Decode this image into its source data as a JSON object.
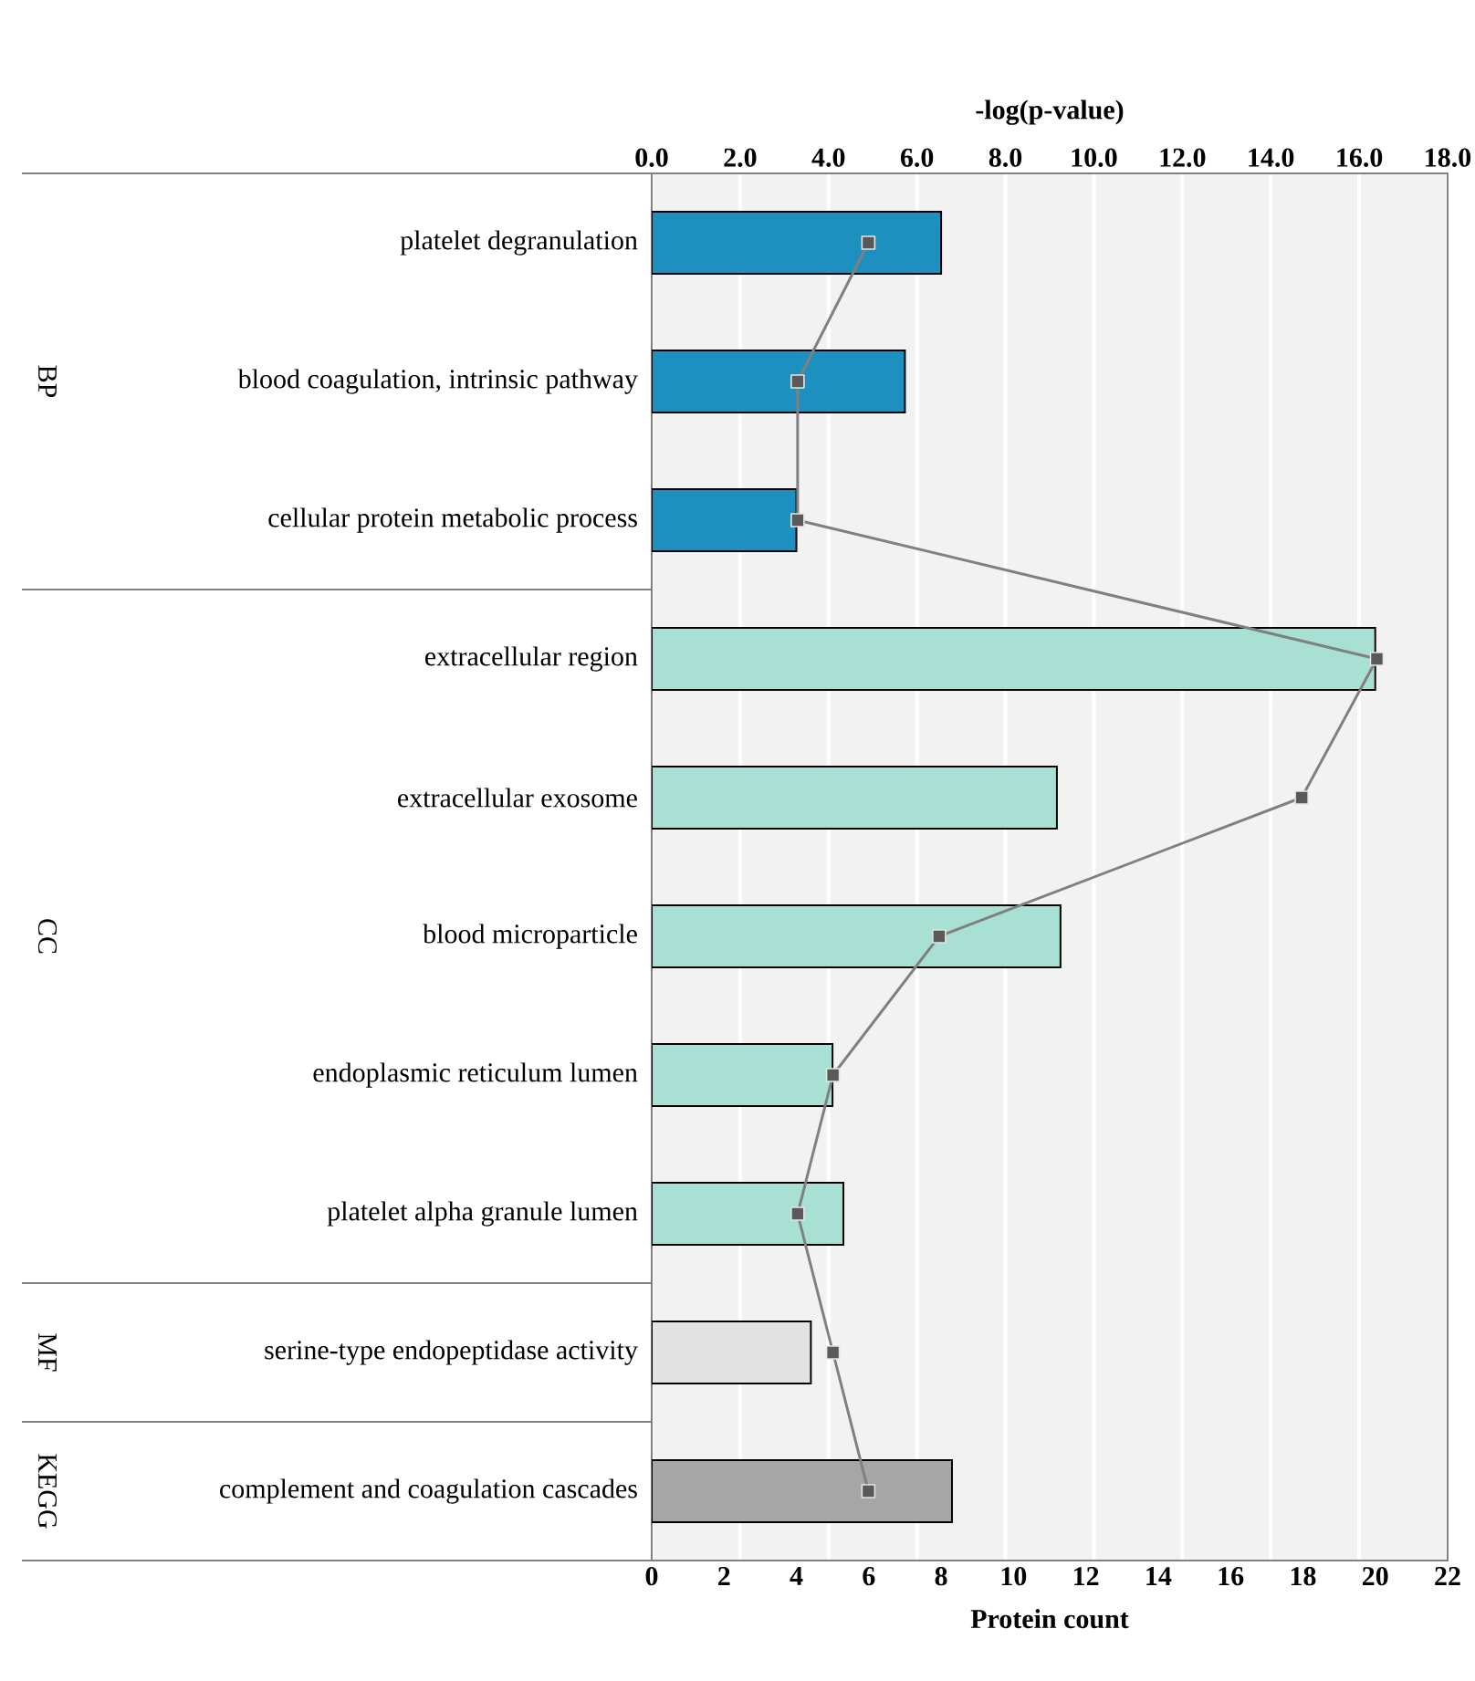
{
  "chart_data": {
    "type": "bar",
    "orientation": "horizontal",
    "xlabel": "Protein count",
    "x2label": "-log(p-value)",
    "categories": [
      "platelet degranulation",
      "blood coagulation, intrinsic pathway",
      "cellular protein metabolic process",
      "extracellular region",
      "extracellular exosome",
      "blood microparticle",
      "endoplasmic reticulum lumen",
      "platelet alpha granule lumen",
      "serine-type endopeptidase activity",
      "complement and coagulation cascades"
    ],
    "series": [
      {
        "values": [
          8,
          7,
          4,
          20,
          11.2,
          11.3,
          5,
          5.3,
          4.4,
          8.3
        ],
        "colors": [
          "#1e90c0",
          "#1e90c0",
          "#1e90c0",
          "#a8e0d4",
          "#a8e0d4",
          "#a8e0d4",
          "#a8e0d4",
          "#a8e0d4",
          "#e2e2e2",
          "#a6a6a6"
        ]
      },
      {
        "type": "line",
        "axis": "x2",
        "color": "#808080",
        "values": [
          4.9,
          3.3,
          3.3,
          16.4,
          14.7,
          6.5,
          4.1,
          3.3,
          4.1,
          4.9
        ]
      }
    ],
    "xlim": [
      0,
      22
    ],
    "xticks": [
      0,
      2,
      4,
      6,
      8,
      10,
      12,
      14,
      16,
      18,
      20,
      22
    ],
    "x2lim": [
      0,
      18
    ],
    "x2ticks": [
      {
        "value": 0,
        "label": "0.0"
      },
      {
        "value": 2,
        "label": "2.0"
      },
      {
        "value": 4,
        "label": "4.0"
      },
      {
        "value": 6,
        "label": "6.0"
      },
      {
        "value": 8,
        "label": "8.0"
      },
      {
        "value": 10,
        "label": "10.0"
      },
      {
        "value": 12,
        "label": "12.0"
      },
      {
        "value": 14,
        "label": "14.0"
      },
      {
        "value": 16,
        "label": "16.0"
      },
      {
        "value": 18,
        "label": "18.0"
      }
    ],
    "grid": "x",
    "marker": "square",
    "annotations": [
      "BP",
      "CC",
      "MF",
      "KEGG"
    ]
  }
}
